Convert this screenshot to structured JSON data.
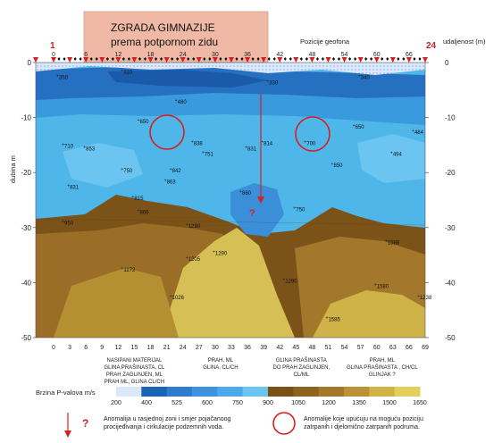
{
  "title_box": {
    "line1": "ZGRADA GIMNAZIJE",
    "line2": "prema potpornom zidu",
    "fill": "#f0b9a6"
  },
  "top_axis": {
    "label_geophones": "Pozicije geofona",
    "label_distance": "udaljenost (m)",
    "start_geophone": "1",
    "end_geophone": "24",
    "ticks": [
      "0",
      "6",
      "12",
      "18",
      "24",
      "30",
      "36",
      "42",
      "48",
      "54",
      "60",
      "66"
    ]
  },
  "bottom_axis": {
    "ticks": [
      "0",
      "3",
      "6",
      "9",
      "12",
      "15",
      "18",
      "21",
      "24",
      "27",
      "30",
      "33",
      "36",
      "39",
      "42",
      "45",
      "48",
      "51",
      "54",
      "57",
      "60",
      "63",
      "66",
      "69"
    ]
  },
  "y_axis": {
    "label": "dubina m",
    "ticks": [
      "0",
      "-10",
      "-20",
      "-30",
      "-40",
      "-50"
    ],
    "min": -50,
    "max": 0
  },
  "velocity_labels": [
    {
      "text": "480",
      "x": 23,
      "d": -7.5
    },
    {
      "text": "650",
      "x": 16,
      "d": -11
    },
    {
      "text": "710",
      "x": 2,
      "d": -15.5
    },
    {
      "text": "853",
      "x": 6,
      "d": -16
    },
    {
      "text": "750",
      "x": 13,
      "d": -20
    },
    {
      "text": "831",
      "x": 3,
      "d": -23
    },
    {
      "text": "815",
      "x": 15,
      "d": -25
    },
    {
      "text": "866",
      "x": 16,
      "d": -27.5
    },
    {
      "text": "838",
      "x": 26,
      "d": -15
    },
    {
      "text": "751",
      "x": 28,
      "d": -17
    },
    {
      "text": "842",
      "x": 22,
      "d": -20
    },
    {
      "text": "863",
      "x": 21,
      "d": -22
    },
    {
      "text": "831",
      "x": 36,
      "d": -16
    },
    {
      "text": "860",
      "x": 35,
      "d": -24
    },
    {
      "text": "750",
      "x": 45,
      "d": -27
    },
    {
      "text": "850",
      "x": 52,
      "d": -19
    },
    {
      "text": "814",
      "x": 39,
      "d": -15
    },
    {
      "text": "650",
      "x": 56,
      "d": -12
    },
    {
      "text": "950",
      "x": 2,
      "d": -29.5
    },
    {
      "text": "1172",
      "x": 13,
      "d": -38
    },
    {
      "text": "1205",
      "x": 25,
      "d": -36
    },
    {
      "text": "1290",
      "x": 25,
      "d": -30
    },
    {
      "text": "1290",
      "x": 30,
      "d": -35
    },
    {
      "text": "1026",
      "x": 22,
      "d": -43
    },
    {
      "text": "1290",
      "x": 43,
      "d": -40
    },
    {
      "text": "1588",
      "x": 62,
      "d": -33
    },
    {
      "text": "1585",
      "x": 51,
      "d": -47
    },
    {
      "text": "1580",
      "x": 60,
      "d": -41
    },
    {
      "text": "1238",
      "x": 68,
      "d": -43
    },
    {
      "text": "484",
      "x": 67,
      "d": -13
    },
    {
      "text": "494",
      "x": 63,
      "d": -17
    },
    {
      "text": "310",
      "x": 13,
      "d": -2
    },
    {
      "text": "330",
      "x": 40,
      "d": -4
    },
    {
      "text": "340",
      "x": 57,
      "d": -3
    },
    {
      "text": "350",
      "x": 1,
      "d": -3
    },
    {
      "text": "700",
      "x": 47,
      "d": -15
    }
  ],
  "soil_columns": [
    {
      "x": 15,
      "lines": [
        "NASIPANI MATERIJAL",
        "GLINA PRAŠINASTA, CL",
        "PRAH ZAGLINJEN, ML",
        "PRAH ML, GLINA CL/CH"
      ]
    },
    {
      "x": 31,
      "lines": [
        "PRAH, ML",
        "GLINA, CL/CH"
      ]
    },
    {
      "x": 46,
      "lines": [
        "GLINA PRAŠINASTA",
        "DO PRAH ZAGLINJEN,",
        "CL/ML"
      ]
    },
    {
      "x": 61,
      "lines": [
        "PRAH, ML",
        "GLINA PRAŠINASTA , CH/CL",
        "GLINJAK ?"
      ]
    }
  ],
  "colorbar": {
    "label": "Brzina P-valova m/s",
    "tick_labels": [
      "200",
      "400",
      "525",
      "600",
      "750",
      "900",
      "1050",
      "1200",
      "1350",
      "1500",
      "1650"
    ],
    "colors": [
      "#dbe8fb",
      "#1a63b5",
      "#2f7bd0",
      "#3f92e0",
      "#4ea9ea",
      "#6cc5f1",
      "#7a5218",
      "#8d6320",
      "#a3782b",
      "#bb9236",
      "#d2b446",
      "#e3cf5a"
    ]
  },
  "legend": {
    "arrow_text": "Anomalija u rasjednoj zoni i smjer pojačanoog procijeđivanja i cirkulacije podzemnih voda.",
    "arrow_marker": "?",
    "circle_text": "Anomalije koje upućuju na moguću poziciju zatrpanih i djelomično zatrpanih podruma.",
    "accent": "#d42020"
  }
}
